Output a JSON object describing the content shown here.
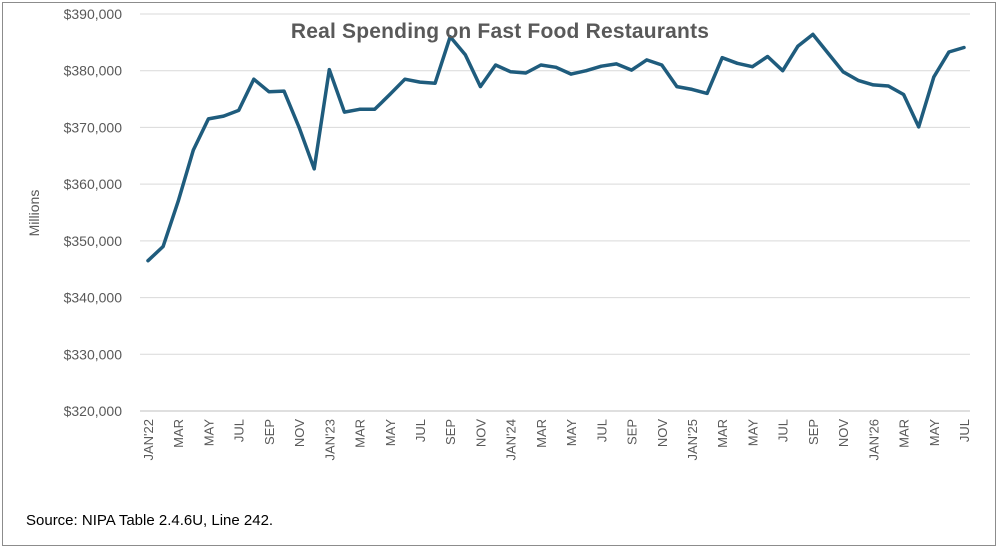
{
  "chart_data": {
    "type": "line",
    "title": "Real Spending on Fast Food Restaurants",
    "ylabel": "Millions",
    "xlabel": "",
    "ylim": [
      320000,
      390000
    ],
    "y_ticks": [
      "$320,000",
      "$330,000",
      "$340,000",
      "$350,000",
      "$360,000",
      "$370,000",
      "$380,000",
      "$390,000"
    ],
    "x_tick_labels": [
      "JAN'22",
      "MAR",
      "MAY",
      "JUL",
      "SEP",
      "NOV",
      "JAN'23",
      "MAR",
      "MAY",
      "JUL",
      "SEP",
      "NOV",
      "JAN'24",
      "MAR",
      "MAY",
      "JUL",
      "SEP",
      "NOV",
      "JAN'25",
      "MAR",
      "MAY",
      "JUL",
      "SEP",
      "NOV",
      "JAN'26",
      "MAR",
      "MAY",
      "JUL"
    ],
    "x": [
      "2022-01",
      "2022-02",
      "2022-03",
      "2022-04",
      "2022-05",
      "2022-06",
      "2022-07",
      "2022-08",
      "2022-09",
      "2022-10",
      "2022-11",
      "2022-12",
      "2023-01",
      "2023-02",
      "2023-03",
      "2023-04",
      "2023-05",
      "2023-06",
      "2023-07",
      "2023-08",
      "2023-09",
      "2023-10",
      "2023-11",
      "2023-12",
      "2024-01",
      "2024-02",
      "2024-03",
      "2024-04",
      "2024-05",
      "2024-06",
      "2024-07",
      "2024-08",
      "2024-09",
      "2024-10",
      "2024-11",
      "2024-12",
      "2025-01",
      "2025-02",
      "2025-03",
      "2025-04",
      "2025-05",
      "2025-06",
      "2025-07",
      "2025-08",
      "2025-09",
      "2025-10",
      "2025-11",
      "2025-12",
      "2026-01",
      "2026-02",
      "2026-03",
      "2026-04",
      "2026-05",
      "2026-06",
      "2026-07"
    ],
    "series": [
      {
        "values": [
          346500,
          349000,
          357000,
          366000,
          371500,
          372000,
          373000,
          378500,
          376300,
          376400,
          370000,
          362700,
          380200,
          372700,
          373200,
          373200,
          375800,
          378500,
          378000,
          377800,
          386000,
          382800,
          377200,
          381000,
          379800,
          379600,
          381000,
          380600,
          379400,
          380000,
          380800,
          381200,
          380100,
          381900,
          381000,
          377200,
          376700,
          376000,
          382300,
          381300,
          380700,
          382500,
          380000,
          384300,
          386400,
          383100,
          379800,
          378300,
          377500,
          377300,
          375800,
          370100,
          378900,
          383300,
          384100
        ]
      }
    ],
    "grid": true,
    "legend": "none",
    "line_color": "#1f5c7d",
    "grid_color": "#d9d9d9",
    "source": "Source: NIPA Table 2.4.6U, Line 242."
  }
}
